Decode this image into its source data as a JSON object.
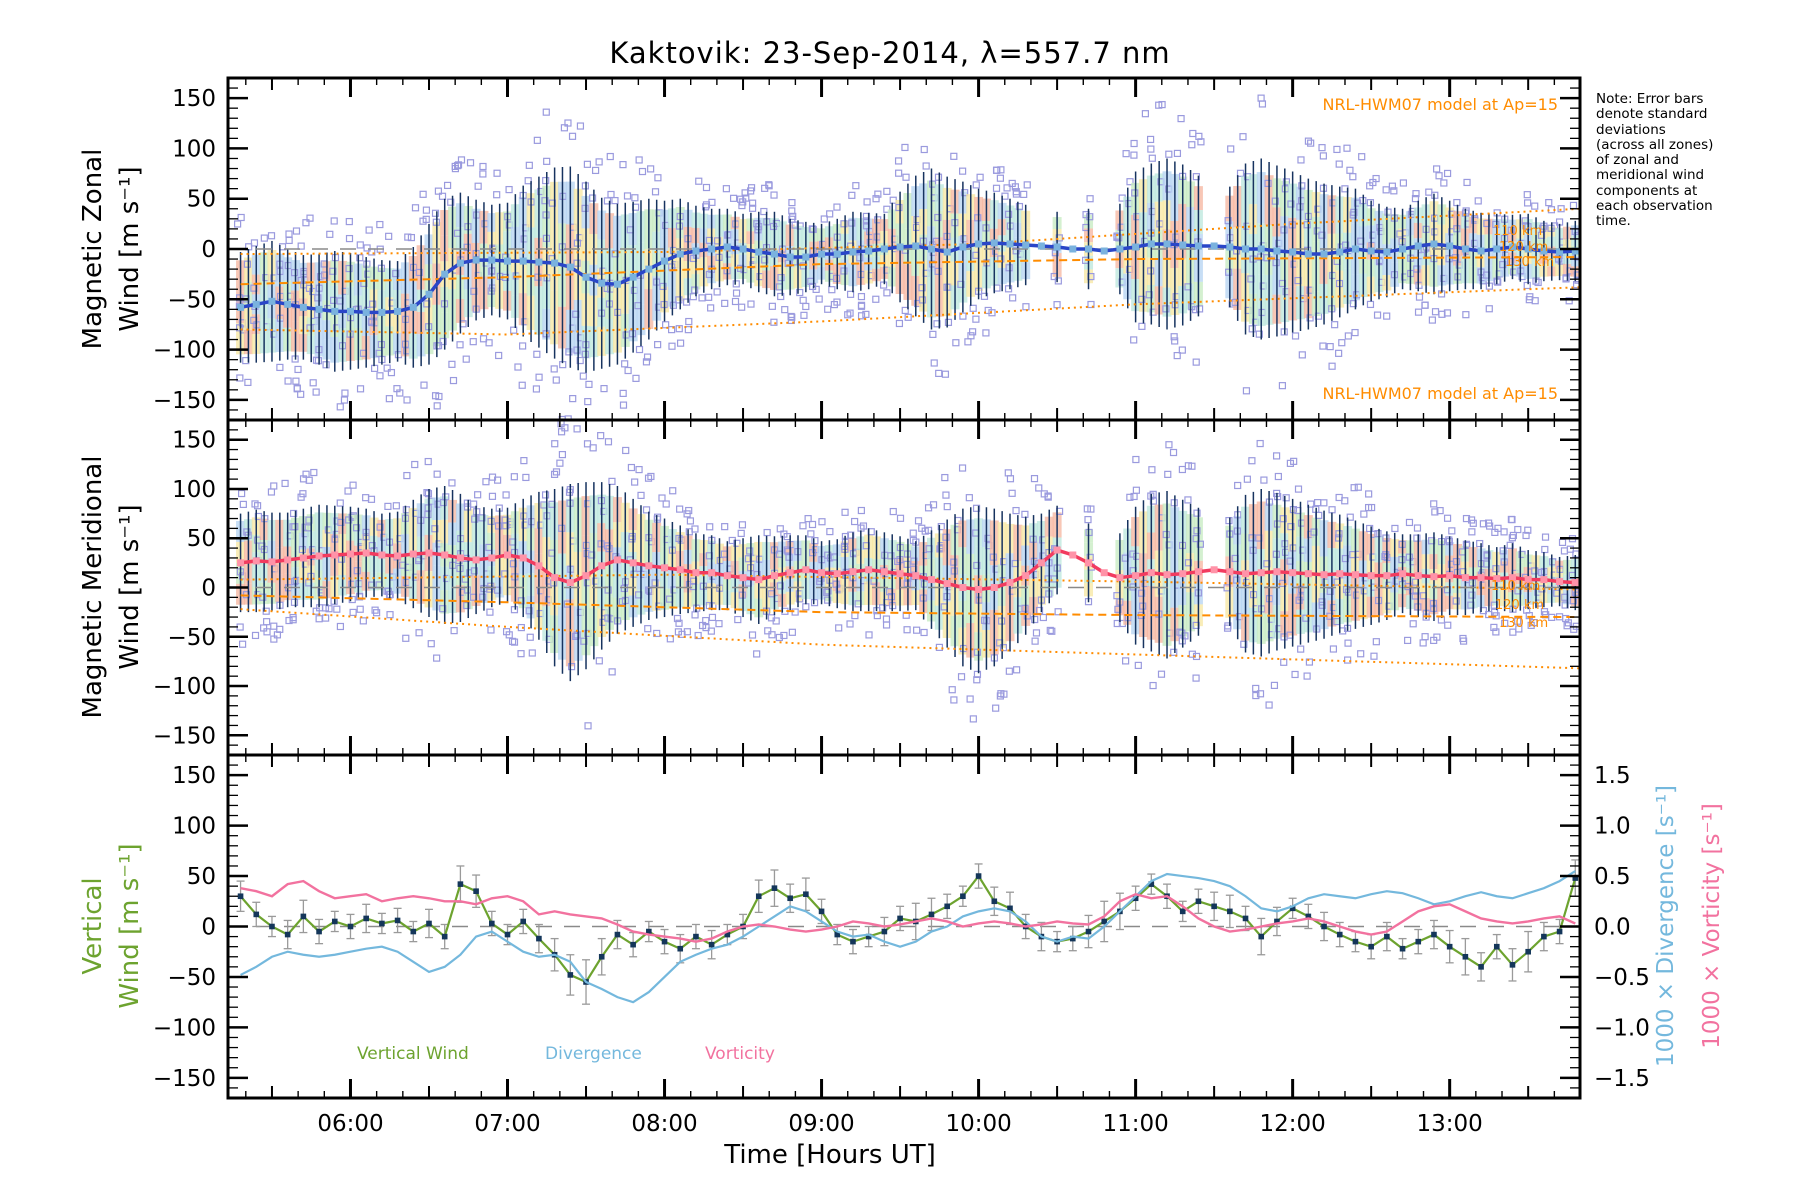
{
  "title": "Kaktovik: 23-Sep-2014, λ=557.7 nm",
  "note_text": "Note: Error bars\ndenote standard\ndeviations\n(across all zones)\nof zonal and\nmeridional wind\ncomponents at\neach observation\ntime.",
  "model_annotation": "NRL-HWM07 model at Ap=15",
  "altitude_labels": {
    "a110": "110 km",
    "a120": "120 km",
    "a130": "130 km"
  },
  "panel_labels": {
    "p1_line1": "Magnetic Zonal",
    "p1_line2": "Wind [m s⁻¹]",
    "p2_line1": "Magnetic Meridional",
    "p2_line2": "Wind [m s⁻¹]",
    "p3_line1": "Vertical",
    "p3_line2": "Wind [m s⁻¹]"
  },
  "x_axis": {
    "title": "Time [Hours UT]",
    "tick_labels": [
      "06:00",
      "07:00",
      "08:00",
      "09:00",
      "10:00",
      "11:00",
      "12:00",
      "13:00"
    ],
    "range_hours": [
      5.22,
      13.83
    ]
  },
  "left_axis": {
    "tick_labels": [
      "150",
      "100",
      "50",
      "0",
      "−50",
      "−100",
      "−150"
    ],
    "range": [
      -170,
      170
    ]
  },
  "right_axis": {
    "tick_labels": [
      "1.5",
      "1.0",
      "0.5",
      "0.0",
      "−0.5",
      "−1.0",
      "−1.5"
    ],
    "divergence_label": "1000 × Divergence [s⁻¹]",
    "vorticity_label": "1000 × Vorticity [s⁻¹]"
  },
  "legend": {
    "vertical_wind": "Vertical Wind",
    "divergence": "Divergence",
    "vorticity": "Vorticity"
  },
  "colors": {
    "zonal_line": "#2a46c8",
    "zonal_marker": "#7ab2de",
    "meridional_line": "#f23b5f",
    "meridional_marker": "#ff93a8",
    "vertical_wind": "#6da32f",
    "vertical_wind_marker": "#14365a",
    "divergence": "#74b8dd",
    "vorticity": "#f2729f",
    "model_orange": "#ff8c00",
    "error_bar_navy": "#17335f",
    "scatter_square": "#9a9ade",
    "error_bar_gray": "#9a9a9a",
    "zero_line": "#8a8a8a",
    "frame": "#000000",
    "band_colors": [
      "#f6b9a4",
      "#f8e9a6",
      "#c9ecc4",
      "#b9d6f2",
      "#bfe9df"
    ]
  },
  "chart_data": [
    {
      "panel": "magnetic_zonal_wind",
      "type": "line",
      "ylabel": "Magnetic Zonal Wind [m s-1]",
      "ylim": [
        -170,
        170
      ],
      "t_start": 5.3,
      "t_step": 0.1,
      "mean_wind": [
        -58,
        -55,
        -52,
        -55,
        -58,
        -60,
        -62,
        -62,
        -63,
        -63,
        -62,
        -58,
        -45,
        -25,
        -14,
        -11,
        -11,
        -12,
        -12,
        -13,
        -14,
        -18,
        -28,
        -34,
        -35,
        -28,
        -20,
        -12,
        -5,
        -2,
        0,
        2,
        0,
        -3,
        -5,
        -8,
        -8,
        -5,
        -5,
        -3,
        -2,
        0,
        2,
        3,
        0,
        -3,
        2,
        5,
        6,
        5,
        4,
        3,
        2,
        0,
        0,
        -2,
        0,
        2,
        5,
        5,
        4,
        3,
        3,
        2,
        0,
        0,
        -2,
        -3,
        -5,
        -5,
        -3,
        0,
        -2,
        -3,
        0,
        3,
        5,
        3,
        0,
        -2,
        0,
        2,
        0,
        -2,
        -3,
        -2
      ],
      "std_dev": [
        55,
        58,
        60,
        55,
        52,
        55,
        60,
        58,
        55,
        52,
        50,
        60,
        70,
        75,
        70,
        60,
        55,
        58,
        75,
        85,
        95,
        100,
        95,
        85,
        80,
        75,
        70,
        60,
        55,
        45,
        40,
        38,
        35,
        40,
        42,
        38,
        35,
        30,
        35,
        40,
        38,
        35,
        55,
        70,
        80,
        75,
        65,
        55,
        50,
        45,
        40,
        0,
        35,
        0,
        40,
        0,
        45,
        75,
        80,
        85,
        80,
        70,
        0,
        60,
        85,
        90,
        85,
        80,
        75,
        70,
        65,
        60,
        50,
        45,
        40,
        45,
        50,
        45,
        40,
        38,
        35,
        32,
        35,
        30,
        28,
        30
      ],
      "model_110km": [
        [
          5.3,
          -5
        ],
        [
          8,
          -3
        ],
        [
          10,
          5
        ],
        [
          12,
          25
        ],
        [
          13.83,
          40
        ]
      ],
      "model_120km": [
        [
          5.3,
          -35
        ],
        [
          7,
          -28
        ],
        [
          9,
          -15
        ],
        [
          11,
          -10
        ],
        [
          13.83,
          -8
        ]
      ],
      "model_130km": [
        [
          5.3,
          -80
        ],
        [
          7,
          -85
        ],
        [
          9,
          -72
        ],
        [
          11,
          -55
        ],
        [
          13.83,
          -38
        ]
      ]
    },
    {
      "panel": "magnetic_meridional_wind",
      "type": "line",
      "ylabel": "Magnetic Meridional Wind [m s-1]",
      "ylim": [
        -170,
        170
      ],
      "t_start": 5.3,
      "t_step": 0.1,
      "mean_wind": [
        25,
        27,
        26,
        28,
        30,
        32,
        33,
        34,
        35,
        33,
        32,
        34,
        35,
        33,
        30,
        28,
        30,
        33,
        30,
        22,
        10,
        5,
        12,
        22,
        28,
        25,
        22,
        20,
        18,
        15,
        15,
        12,
        10,
        8,
        12,
        15,
        18,
        15,
        14,
        16,
        18,
        16,
        14,
        12,
        8,
        4,
        0,
        -2,
        0,
        5,
        12,
        25,
        38,
        33,
        25,
        15,
        10,
        12,
        15,
        13,
        14,
        16,
        18,
        16,
        14,
        15,
        16,
        15,
        14,
        13,
        14,
        13,
        12,
        12,
        14,
        12,
        11,
        12,
        10,
        10,
        9,
        10,
        8,
        8,
        6,
        5
      ],
      "std_dev": [
        50,
        52,
        50,
        48,
        50,
        52,
        50,
        48,
        45,
        42,
        45,
        55,
        65,
        70,
        65,
        55,
        50,
        48,
        60,
        75,
        90,
        100,
        95,
        85,
        75,
        65,
        55,
        50,
        45,
        40,
        38,
        35,
        40,
        45,
        40,
        38,
        35,
        32,
        35,
        40,
        42,
        40,
        38,
        35,
        50,
        65,
        80,
        85,
        80,
        70,
        60,
        50,
        45,
        0,
        40,
        0,
        45,
        70,
        80,
        85,
        75,
        65,
        0,
        55,
        80,
        85,
        80,
        75,
        70,
        65,
        60,
        55,
        50,
        45,
        40,
        42,
        45,
        40,
        38,
        35,
        32,
        35,
        30,
        28,
        25,
        28
      ],
      "model_110km": [
        [
          5.3,
          8
        ],
        [
          8,
          13
        ],
        [
          11,
          6
        ],
        [
          13.83,
          -2
        ]
      ],
      "model_120km": [
        [
          5.3,
          -8
        ],
        [
          7,
          -15
        ],
        [
          9,
          -25
        ],
        [
          11,
          -28
        ],
        [
          13.83,
          -30
        ]
      ],
      "model_130km": [
        [
          5.3,
          -22
        ],
        [
          7,
          -40
        ],
        [
          9,
          -58
        ],
        [
          11,
          -68
        ],
        [
          13.83,
          -82
        ]
      ]
    },
    {
      "panel": "vertical_wind_divergence_vorticity",
      "type": "line",
      "ylim_left": [
        -170,
        170
      ],
      "ylim_right": [
        -1.7,
        1.7
      ],
      "t_start": 5.3,
      "t_step": 0.1,
      "vertical_wind": [
        30,
        12,
        0,
        -8,
        10,
        -5,
        5,
        0,
        8,
        3,
        6,
        -5,
        3,
        -10,
        42,
        35,
        3,
        -8,
        5,
        -12,
        -28,
        -48,
        -55,
        -30,
        -8,
        -18,
        -5,
        -15,
        -22,
        -10,
        -18,
        -8,
        0,
        30,
        38,
        28,
        32,
        15,
        -8,
        -15,
        -10,
        -5,
        8,
        5,
        12,
        20,
        30,
        50,
        25,
        18,
        0,
        -10,
        -15,
        -12,
        -5,
        5,
        15,
        28,
        42,
        30,
        15,
        25,
        20,
        15,
        8,
        -10,
        5,
        18,
        10,
        0,
        -8,
        -15,
        -20,
        -10,
        -22,
        -15,
        -8,
        -20,
        -30,
        -40,
        -20,
        -38,
        -25,
        -10,
        -5,
        48
      ],
      "vertical_wind_err": [
        15,
        12,
        10,
        14,
        16,
        12,
        10,
        12,
        14,
        10,
        12,
        10,
        14,
        12,
        18,
        16,
        12,
        10,
        12,
        14,
        16,
        20,
        22,
        18,
        14,
        12,
        10,
        12,
        14,
        12,
        14,
        10,
        12,
        16,
        18,
        14,
        16,
        12,
        10,
        12,
        10,
        14,
        12,
        18,
        16,
        12,
        10,
        12,
        14,
        16,
        12,
        14,
        10,
        12,
        16,
        20,
        18,
        12,
        10,
        12,
        10,
        12,
        14,
        16,
        12,
        18,
        14,
        10,
        12,
        14,
        12,
        10,
        12,
        14,
        10,
        12,
        14,
        16,
        18,
        14,
        12,
        16,
        20,
        14,
        12,
        18
      ],
      "divergence_x1000": [
        -0.48,
        -0.4,
        -0.3,
        -0.25,
        -0.28,
        -0.3,
        -0.28,
        -0.25,
        -0.22,
        -0.2,
        -0.25,
        -0.35,
        -0.45,
        -0.4,
        -0.28,
        -0.1,
        -0.05,
        -0.15,
        -0.25,
        -0.3,
        -0.28,
        -0.35,
        -0.55,
        -0.62,
        -0.7,
        -0.75,
        -0.65,
        -0.5,
        -0.35,
        -0.28,
        -0.22,
        -0.18,
        -0.1,
        0.0,
        0.1,
        0.2,
        0.15,
        0.05,
        -0.05,
        -0.1,
        -0.08,
        -0.15,
        -0.2,
        -0.15,
        -0.05,
        0.0,
        0.1,
        0.15,
        0.18,
        0.15,
        0.05,
        -0.1,
        -0.15,
        -0.1,
        -0.12,
        0.0,
        0.15,
        0.3,
        0.45,
        0.52,
        0.5,
        0.48,
        0.45,
        0.4,
        0.3,
        0.18,
        0.15,
        0.2,
        0.28,
        0.32,
        0.3,
        0.28,
        0.32,
        0.35,
        0.33,
        0.28,
        0.22,
        0.25,
        0.3,
        0.34,
        0.3,
        0.28,
        0.33,
        0.38,
        0.45,
        0.55
      ],
      "vorticity_x1000": [
        0.38,
        0.35,
        0.3,
        0.42,
        0.45,
        0.35,
        0.28,
        0.3,
        0.32,
        0.25,
        0.28,
        0.3,
        0.28,
        0.25,
        0.25,
        0.22,
        0.28,
        0.3,
        0.25,
        0.12,
        0.15,
        0.12,
        0.1,
        0.08,
        0.02,
        -0.05,
        -0.08,
        -0.1,
        -0.12,
        -0.15,
        -0.12,
        -0.05,
        0.0,
        0.02,
        0.0,
        -0.03,
        -0.05,
        -0.03,
        0.0,
        0.05,
        0.03,
        0.0,
        0.02,
        0.05,
        0.08,
        0.05,
        0.0,
        0.03,
        0.05,
        0.03,
        0.0,
        0.02,
        0.05,
        0.03,
        0.02,
        0.1,
        0.25,
        0.32,
        0.28,
        0.3,
        0.2,
        0.08,
        0.0,
        -0.05,
        -0.03,
        0.0,
        0.03,
        0.05,
        0.08,
        0.05,
        0.0,
        -0.05,
        -0.08,
        -0.05,
        0.05,
        0.15,
        0.2,
        0.22,
        0.15,
        0.08,
        0.05,
        0.03,
        0.05,
        0.08,
        0.1,
        0.03
      ]
    }
  ]
}
